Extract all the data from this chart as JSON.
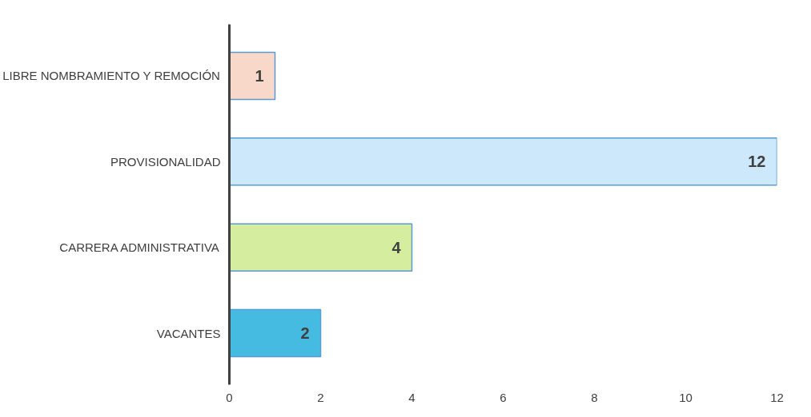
{
  "chart_data": {
    "type": "bar",
    "orientation": "horizontal",
    "categories": [
      "LIBRE NOMBRAMIENTO Y REMOCIÓN",
      "PROVISIONALIDAD",
      "CARRERA ADMINISTRATIVA",
      "VACANTES"
    ],
    "values": [
      1,
      12,
      4,
      2
    ],
    "colors": [
      "#f8d8c8",
      "#cde8fa",
      "#d4ed9e",
      "#45bbe2"
    ],
    "xlim": [
      0,
      12
    ],
    "xticks": [
      0,
      2,
      4,
      6,
      8,
      10,
      12
    ],
    "data_labels": true,
    "grid": false
  }
}
